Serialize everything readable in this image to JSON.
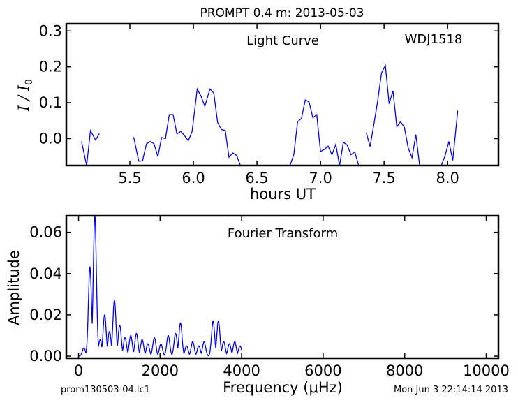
{
  "figure": {
    "title": "PROMPT 0.4 m:  2013-05-03",
    "footer_left": "prom130503-04.lc1",
    "footer_right": "Mon Jun  3 22:14:14 2013"
  },
  "chart_data": [
    {
      "type": "line",
      "panel": "light-curve",
      "annotation": "Light Curve",
      "object_label": "WDJ1518",
      "xlabel": "hours UT",
      "ylabel_main": "I / I",
      "ylabel_sub": "0",
      "xlim": [
        5.0,
        8.4
      ],
      "ylim": [
        -0.075,
        0.32
      ],
      "xticks": [
        5.5,
        6.0,
        6.5,
        7.0,
        7.5,
        8.0
      ],
      "xtick_labels": [
        "5.5",
        "6.0",
        "6.5",
        "7.0",
        "7.5",
        "8.0"
      ],
      "yticks": [
        0.0,
        0.1,
        0.2,
        0.3
      ],
      "ytick_labels": [
        "0.0",
        "0.1",
        "0.2",
        "0.3"
      ],
      "line_color": "#0000ff",
      "segments": [
        [
          [
            5.12,
            -0.008
          ],
          [
            5.16,
            -0.075
          ],
          [
            5.19,
            0.022
          ],
          [
            5.23,
            -0.004
          ],
          [
            5.26,
            0.014
          ]
        ],
        [
          [
            5.53,
            0.004
          ],
          [
            5.57,
            -0.063
          ],
          [
            5.6,
            -0.062
          ],
          [
            5.63,
            -0.015
          ],
          [
            5.66,
            -0.008
          ],
          [
            5.69,
            -0.014
          ],
          [
            5.72,
            -0.05
          ],
          [
            5.75,
            0.003
          ],
          [
            5.78,
            0.0
          ],
          [
            5.81,
            0.067
          ],
          [
            5.84,
            0.067
          ],
          [
            5.87,
            0.013
          ],
          [
            5.9,
            0.02
          ],
          [
            5.93,
            0.008
          ],
          [
            5.96,
            -0.006
          ],
          [
            5.99,
            0.02
          ],
          [
            6.03,
            0.138
          ],
          [
            6.06,
            0.118
          ],
          [
            6.09,
            0.09
          ],
          [
            6.13,
            0.138
          ],
          [
            6.16,
            0.127
          ],
          [
            6.19,
            0.045
          ],
          [
            6.22,
            0.025
          ],
          [
            6.25,
            0.023
          ],
          [
            6.28,
            -0.052
          ],
          [
            6.31,
            -0.04
          ],
          [
            6.34,
            -0.047
          ],
          [
            6.37,
            -0.075
          ]
        ],
        [
          [
            6.76,
            -0.075
          ],
          [
            6.79,
            -0.044
          ],
          [
            6.82,
            0.047
          ],
          [
            6.85,
            0.056
          ],
          [
            6.88,
            0.108
          ],
          [
            6.91,
            0.102
          ],
          [
            6.94,
            0.058
          ],
          [
            6.97,
            0.067
          ],
          [
            7.0,
            -0.036
          ],
          [
            7.03,
            -0.03
          ],
          [
            7.06,
            -0.021
          ],
          [
            7.09,
            -0.045
          ],
          [
            7.12,
            -0.016
          ],
          [
            7.15,
            -0.075
          ],
          [
            7.18,
            -0.01
          ],
          [
            7.21,
            -0.018
          ],
          [
            7.24,
            -0.045
          ],
          [
            7.27,
            -0.037
          ],
          [
            7.3,
            -0.075
          ]
        ],
        [
          [
            7.36,
            0.016
          ],
          [
            7.39,
            -0.022
          ],
          [
            7.42,
            0.04
          ],
          [
            7.45,
            0.105
          ],
          [
            7.48,
            0.183
          ],
          [
            7.51,
            0.204
          ],
          [
            7.54,
            0.097
          ],
          [
            7.57,
            0.133
          ],
          [
            7.6,
            0.033
          ],
          [
            7.63,
            0.047
          ],
          [
            7.66,
            0.031
          ],
          [
            7.69,
            -0.026
          ],
          [
            7.72,
            -0.053
          ],
          [
            7.75,
            0.011
          ],
          [
            7.78,
            -0.075
          ]
        ],
        [
          [
            7.95,
            -0.075
          ],
          [
            7.98,
            -0.048
          ],
          [
            8.01,
            -0.008
          ],
          [
            8.04,
            -0.061
          ],
          [
            8.08,
            0.078
          ]
        ]
      ]
    },
    {
      "type": "line",
      "panel": "fourier-transform",
      "annotation": "Fourier Transform",
      "xlabel": "Frequency (μHz)",
      "ylabel": "Amplitude",
      "xlim": [
        -300,
        10300
      ],
      "ylim": [
        -0.001,
        0.068
      ],
      "xticks": [
        0,
        2000,
        4000,
        6000,
        8000,
        10000
      ],
      "xtick_labels": [
        "0",
        "2000",
        "4000",
        "6000",
        "8000",
        "10000"
      ],
      "yticks": [
        0.0,
        0.02,
        0.04,
        0.06
      ],
      "ytick_labels": [
        "0.00",
        "0.02",
        "0.04",
        "0.06"
      ],
      "line_color": "#0000ff",
      "freq_max": 4000,
      "peaks": [
        {
          "f": 130,
          "a": 0.004
        },
        {
          "f": 280,
          "a": 0.043
        },
        {
          "f": 400,
          "a": 0.068
        },
        {
          "f": 530,
          "a": 0.008
        },
        {
          "f": 640,
          "a": 0.02
        },
        {
          "f": 760,
          "a": 0.012
        },
        {
          "f": 880,
          "a": 0.027
        },
        {
          "f": 1010,
          "a": 0.015
        },
        {
          "f": 1140,
          "a": 0.009
        },
        {
          "f": 1280,
          "a": 0.01
        },
        {
          "f": 1420,
          "a": 0.011
        },
        {
          "f": 1560,
          "a": 0.008
        },
        {
          "f": 1700,
          "a": 0.006
        },
        {
          "f": 1860,
          "a": 0.009
        },
        {
          "f": 2020,
          "a": 0.006
        },
        {
          "f": 2200,
          "a": 0.01
        },
        {
          "f": 2380,
          "a": 0.011
        },
        {
          "f": 2500,
          "a": 0.016
        },
        {
          "f": 2650,
          "a": 0.005
        },
        {
          "f": 2800,
          "a": 0.007
        },
        {
          "f": 2950,
          "a": 0.005
        },
        {
          "f": 3080,
          "a": 0.007
        },
        {
          "f": 3300,
          "a": 0.017
        },
        {
          "f": 3430,
          "a": 0.017
        },
        {
          "f": 3560,
          "a": 0.007
        },
        {
          "f": 3700,
          "a": 0.006
        },
        {
          "f": 3830,
          "a": 0.007
        },
        {
          "f": 3960,
          "a": 0.005
        }
      ]
    }
  ]
}
